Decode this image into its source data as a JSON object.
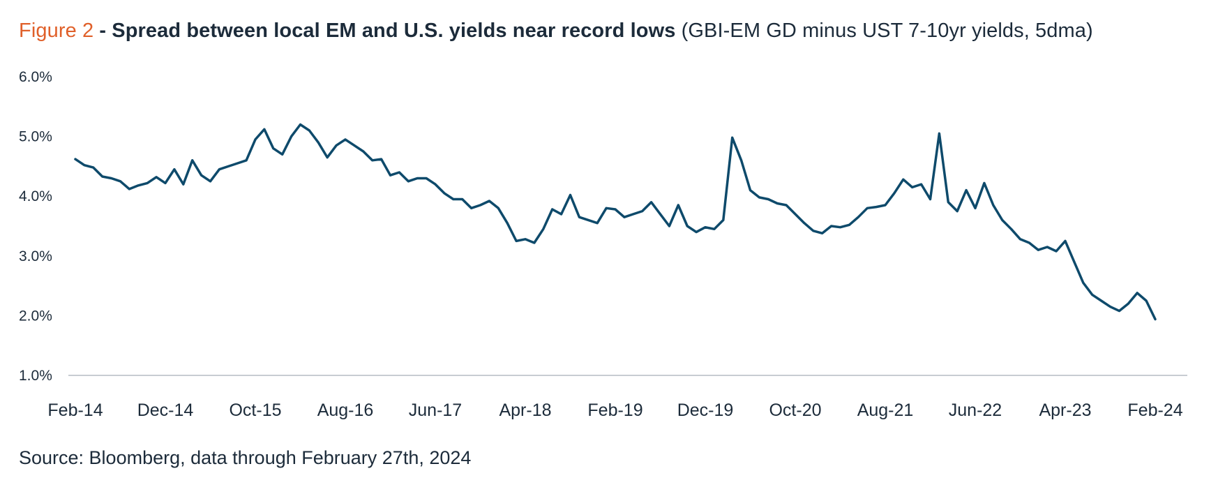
{
  "title": {
    "figure_label": "Figure 2",
    "separator": " - ",
    "main": "Spread between local EM and U.S. yields near record lows",
    "subtitle": " (GBI-EM GD minus UST 7-10yr yields, 5dma)"
  },
  "source": "Source: Bloomberg, data through February 27th, 2024",
  "colors": {
    "line": "#0e4a6b",
    "axis": "#b5bcc3",
    "accent": "#e0602a"
  },
  "chart_data": {
    "type": "line",
    "title": "Spread between local EM and U.S. yields near record lows",
    "subtitle": "(GBI-EM GD minus UST 7-10yr yields, 5dma)",
    "xlabel": "",
    "ylabel": "",
    "ylim": [
      1.0,
      6.0
    ],
    "y_ticks": [
      "6.0%",
      "5.0%",
      "4.0%",
      "3.0%",
      "2.0%",
      "1.0%"
    ],
    "x_ticks": [
      "Feb-14",
      "Dec-14",
      "Oct-15",
      "Aug-16",
      "Jun-17",
      "Apr-18",
      "Feb-19",
      "Dec-19",
      "Oct-20",
      "Aug-21",
      "Jun-22",
      "Apr-23",
      "Feb-24"
    ],
    "grid": false,
    "legend": "none",
    "series": [
      {
        "points": [
          [
            "2014-02",
            4.62
          ],
          [
            "2014-03",
            4.52
          ],
          [
            "2014-04",
            4.48
          ],
          [
            "2014-05",
            4.33
          ],
          [
            "2014-06",
            4.3
          ],
          [
            "2014-07",
            4.25
          ],
          [
            "2014-08",
            4.12
          ],
          [
            "2014-09",
            4.18
          ],
          [
            "2014-10",
            4.22
          ],
          [
            "2014-11",
            4.32
          ],
          [
            "2014-12",
            4.22
          ],
          [
            "2015-01",
            4.45
          ],
          [
            "2015-02",
            4.2
          ],
          [
            "2015-03",
            4.6
          ],
          [
            "2015-04",
            4.35
          ],
          [
            "2015-05",
            4.25
          ],
          [
            "2015-06",
            4.45
          ],
          [
            "2015-07",
            4.5
          ],
          [
            "2015-08",
            4.55
          ],
          [
            "2015-09",
            4.6
          ],
          [
            "2015-10",
            4.95
          ],
          [
            "2015-11",
            5.12
          ],
          [
            "2015-12",
            4.8
          ],
          [
            "2016-01",
            4.7
          ],
          [
            "2016-02",
            5.0
          ],
          [
            "2016-03",
            5.2
          ],
          [
            "2016-04",
            5.1
          ],
          [
            "2016-05",
            4.9
          ],
          [
            "2016-06",
            4.65
          ],
          [
            "2016-07",
            4.85
          ],
          [
            "2016-08",
            4.95
          ],
          [
            "2016-09",
            4.85
          ],
          [
            "2016-10",
            4.75
          ],
          [
            "2016-11",
            4.6
          ],
          [
            "2016-12",
            4.62
          ],
          [
            "2017-01",
            4.35
          ],
          [
            "2017-02",
            4.4
          ],
          [
            "2017-03",
            4.25
          ],
          [
            "2017-04",
            4.3
          ],
          [
            "2017-05",
            4.3
          ],
          [
            "2017-06",
            4.2
          ],
          [
            "2017-07",
            4.05
          ],
          [
            "2017-08",
            3.95
          ],
          [
            "2017-09",
            3.95
          ],
          [
            "2017-10",
            3.8
          ],
          [
            "2017-11",
            3.85
          ],
          [
            "2017-12",
            3.92
          ],
          [
            "2018-01",
            3.8
          ],
          [
            "2018-02",
            3.55
          ],
          [
            "2018-03",
            3.25
          ],
          [
            "2018-04",
            3.28
          ],
          [
            "2018-05",
            3.22
          ],
          [
            "2018-06",
            3.45
          ],
          [
            "2018-07",
            3.78
          ],
          [
            "2018-08",
            3.7
          ],
          [
            "2018-09",
            4.02
          ],
          [
            "2018-10",
            3.65
          ],
          [
            "2018-11",
            3.6
          ],
          [
            "2018-12",
            3.55
          ],
          [
            "2019-01",
            3.8
          ],
          [
            "2019-02",
            3.78
          ],
          [
            "2019-03",
            3.65
          ],
          [
            "2019-04",
            3.7
          ],
          [
            "2019-05",
            3.75
          ],
          [
            "2019-06",
            3.9
          ],
          [
            "2019-07",
            3.7
          ],
          [
            "2019-08",
            3.5
          ],
          [
            "2019-09",
            3.85
          ],
          [
            "2019-10",
            3.5
          ],
          [
            "2019-11",
            3.4
          ],
          [
            "2019-12",
            3.48
          ],
          [
            "2020-01",
            3.45
          ],
          [
            "2020-02",
            3.6
          ],
          [
            "2020-03",
            4.98
          ],
          [
            "2020-04",
            4.6
          ],
          [
            "2020-05",
            4.1
          ],
          [
            "2020-06",
            3.98
          ],
          [
            "2020-07",
            3.95
          ],
          [
            "2020-08",
            3.88
          ],
          [
            "2020-09",
            3.85
          ],
          [
            "2020-10",
            3.7
          ],
          [
            "2020-11",
            3.55
          ],
          [
            "2020-12",
            3.42
          ],
          [
            "2021-01",
            3.38
          ],
          [
            "2021-02",
            3.5
          ],
          [
            "2021-03",
            3.48
          ],
          [
            "2021-04",
            3.52
          ],
          [
            "2021-05",
            3.65
          ],
          [
            "2021-06",
            3.8
          ],
          [
            "2021-07",
            3.82
          ],
          [
            "2021-08",
            3.85
          ],
          [
            "2021-09",
            4.05
          ],
          [
            "2021-10",
            4.28
          ],
          [
            "2021-11",
            4.15
          ],
          [
            "2021-12",
            4.2
          ],
          [
            "2022-01",
            3.95
          ],
          [
            "2022-02",
            5.05
          ],
          [
            "2022-03",
            3.9
          ],
          [
            "2022-04",
            3.75
          ],
          [
            "2022-05",
            4.1
          ],
          [
            "2022-06",
            3.8
          ],
          [
            "2022-07",
            4.22
          ],
          [
            "2022-08",
            3.85
          ],
          [
            "2022-09",
            3.6
          ],
          [
            "2022-10",
            3.45
          ],
          [
            "2022-11",
            3.28
          ],
          [
            "2022-12",
            3.22
          ],
          [
            "2023-01",
            3.1
          ],
          [
            "2023-02",
            3.15
          ],
          [
            "2023-03",
            3.08
          ],
          [
            "2023-04",
            3.25
          ],
          [
            "2023-05",
            2.9
          ],
          [
            "2023-06",
            2.55
          ],
          [
            "2023-07",
            2.35
          ],
          [
            "2023-08",
            2.25
          ],
          [
            "2023-09",
            2.15
          ],
          [
            "2023-10",
            2.08
          ],
          [
            "2023-11",
            2.2
          ],
          [
            "2023-12",
            2.38
          ],
          [
            "2024-01",
            2.25
          ],
          [
            "2024-02",
            1.94
          ]
        ]
      }
    ]
  }
}
